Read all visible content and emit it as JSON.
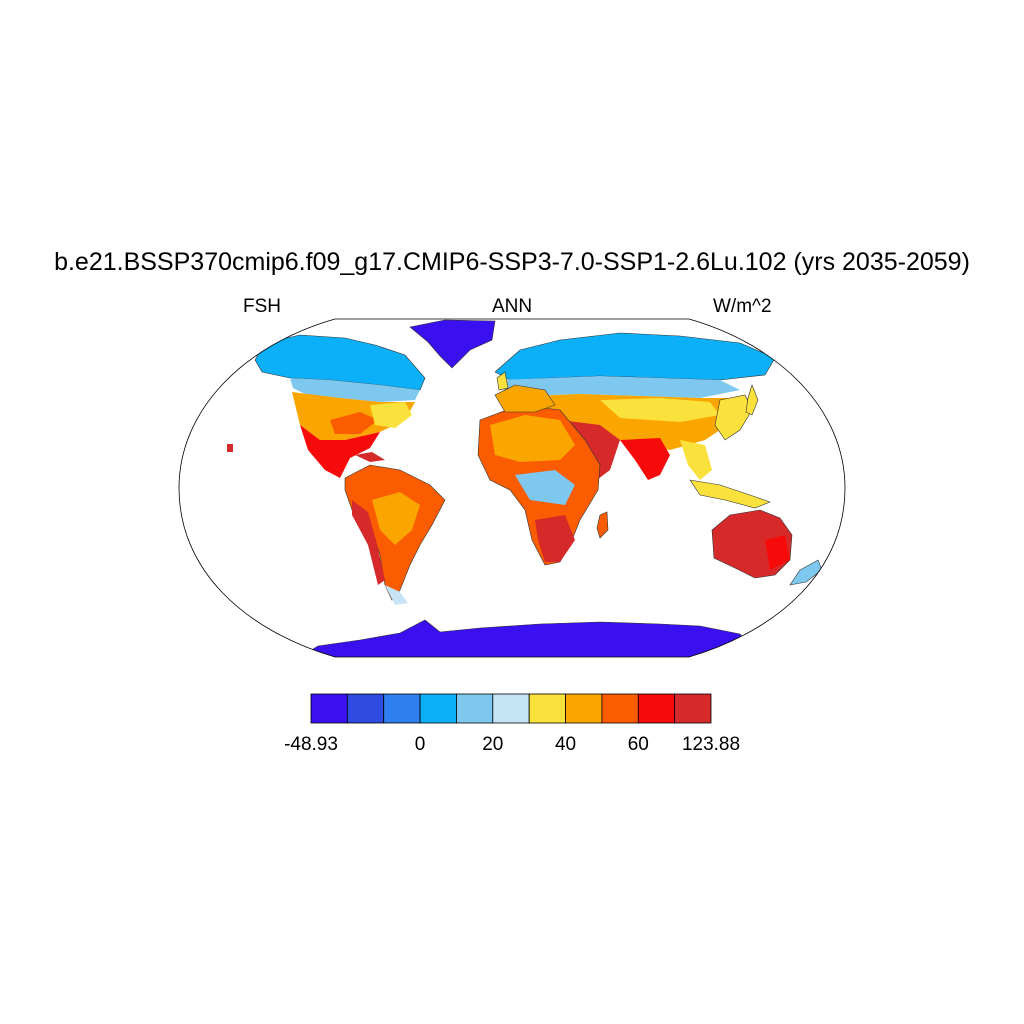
{
  "title": "b.e21.BSSP370cmip6.f09_g17.CMIP6-SSP3-7.0-SSP1-2.6Lu.102 (yrs 2035-2059)",
  "variable": "FSH",
  "season": "ANN",
  "units": "W/m^2",
  "colorbar": {
    "colors": [
      "#3a10f0",
      "#2f4be0",
      "#2f7ff0",
      "#0cb0f8",
      "#7ec8f0",
      "#c6e4f6",
      "#fbe13b",
      "#fba500",
      "#fb5c00",
      "#f70a0a",
      "#d62a2a"
    ],
    "labels": [
      {
        "text": "-48.93",
        "edge": 0
      },
      {
        "text": "0",
        "edge": 3
      },
      {
        "text": "20",
        "edge": 5
      },
      {
        "text": "40",
        "edge": 7
      },
      {
        "text": "60",
        "edge": 9
      },
      {
        "text": "123.88",
        "edge": 11
      }
    ]
  }
}
